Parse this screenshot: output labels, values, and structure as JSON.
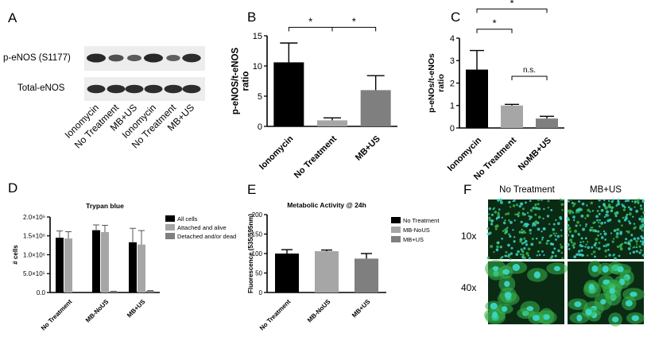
{
  "panel_letters": [
    "A",
    "B",
    "C",
    "D",
    "E",
    "F"
  ],
  "blot": {
    "row_labels": [
      "p-eNOS (S1177)",
      "Total-eNOS"
    ],
    "lane_labels": [
      "Ionomycin",
      "No Treatment",
      "MB+US",
      "Ionomycin",
      "No Treatment",
      "MB+US"
    ],
    "band_intensity": {
      "p_enos": [
        1.0,
        0.55,
        0.45,
        1.0,
        0.4,
        0.95
      ],
      "total_enos": [
        0.9,
        0.9,
        0.9,
        0.9,
        0.9,
        0.9
      ]
    }
  },
  "micrographs": {
    "column_labels": [
      "No Treatment",
      "MB+US"
    ],
    "row_labels": [
      "10x",
      "40x"
    ],
    "colors": {
      "background": "#0a2a14",
      "nucleus": "#3bd6c6",
      "cytoplasm": "#38b24a"
    }
  },
  "chart_data": [
    {
      "id": "B",
      "type": "bar",
      "categories": [
        "Ionomycin",
        "No Treatment",
        "MB+US"
      ],
      "values": [
        10.6,
        1.0,
        6.0
      ],
      "errors": [
        3.2,
        0.4,
        2.4
      ],
      "colors": [
        "#000000",
        "#a6a6a6",
        "#7f7f7f"
      ],
      "ylabel": "p-eNOS/t-eNOS\nratio",
      "ylim": [
        0,
        15
      ],
      "yticks": [
        0,
        5,
        10,
        15
      ],
      "significance": [
        {
          "from": 0,
          "to": 1,
          "level": 16.4,
          "label": "*"
        },
        {
          "from": 1,
          "to": 2,
          "level": 16.4,
          "label": "*"
        }
      ]
    },
    {
      "id": "C",
      "type": "bar",
      "categories": [
        "Ionomycin",
        "No Treatment",
        "NoMB+US"
      ],
      "values": [
        2.6,
        1.0,
        0.42
      ],
      "errors": [
        0.85,
        0.05,
        0.1
      ],
      "colors": [
        "#000000",
        "#a6a6a6",
        "#7f7f7f"
      ],
      "ylabel": "p-eNOs/t-eNOs\nratio",
      "ylim": [
        0,
        4
      ],
      "yticks": [
        0,
        1,
        2,
        3,
        4
      ],
      "significance": [
        {
          "from": 0,
          "to": 1,
          "level": 4.4,
          "label": "*"
        },
        {
          "from": 0,
          "to": 2,
          "level": 5.3,
          "label": "*"
        },
        {
          "from": 1,
          "to": 2,
          "level": 2.3,
          "label": "n.s."
        }
      ]
    },
    {
      "id": "D",
      "type": "bar",
      "title": "Trypan blue",
      "categories": [
        "No Treatment",
        "MB-NoUS",
        "MB+US"
      ],
      "ylabel": "# cells",
      "ylim": [
        0,
        2000000
      ],
      "yticks": [
        0,
        500000,
        1000000,
        1500000,
        2000000
      ],
      "ytick_labels": [
        "0.0",
        "5.0×10⁵",
        "1.0×10⁶",
        "1.5×10⁶",
        "2.0×10⁶"
      ],
      "series": [
        {
          "name": "All cells",
          "color": "#000000",
          "values": [
            1450000,
            1650000,
            1330000
          ],
          "errors": [
            180000,
            140000,
            370000
          ]
        },
        {
          "name": "Attached and alive",
          "color": "#a6a6a6",
          "values": [
            1430000,
            1600000,
            1270000
          ],
          "errors": [
            180000,
            180000,
            370000
          ]
        },
        {
          "name": "Detached and/or dead",
          "color": "#7f7f7f",
          "values": [
            0,
            25000,
            40000
          ],
          "errors": [
            0,
            8000,
            10000
          ]
        }
      ],
      "legend": "right"
    },
    {
      "id": "E",
      "type": "bar",
      "title": "Metabolic Activity @ 24h",
      "categories": [
        "No Treatment",
        "MB-NoUS",
        "MB+US"
      ],
      "values": [
        100,
        106,
        87
      ],
      "errors": [
        10,
        3,
        13
      ],
      "colors": [
        "#000000",
        "#a6a6a6",
        "#7f7f7f"
      ],
      "ylabel": "Fluorescence (535/595nm)",
      "ylim": [
        0,
        200
      ],
      "yticks": [
        0,
        50,
        100,
        150,
        200
      ],
      "legend_entries": [
        {
          "name": "No Treatment",
          "color": "#000000"
        },
        {
          "name": "MB-NoUS",
          "color": "#a6a6a6"
        },
        {
          "name": "MB+US",
          "color": "#7f7f7f"
        }
      ],
      "legend": "right"
    }
  ]
}
